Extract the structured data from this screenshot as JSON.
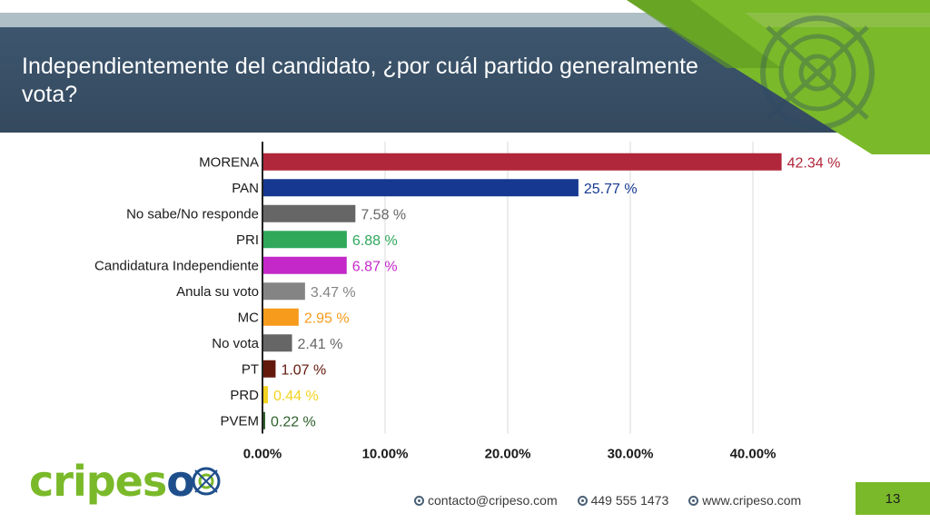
{
  "header": {
    "title": "Independientemente del candidato, ¿por cuál partido generalmente vota?"
  },
  "chart_data": {
    "type": "bar",
    "orientation": "horizontal",
    "categories": [
      "MORENA",
      "PAN",
      "No sabe/No responde",
      "PRI",
      "Candidatura Independiente",
      "Anula su voto",
      "MC",
      "No vota",
      "PT",
      "PRD",
      "PVEM"
    ],
    "values": [
      42.34,
      25.77,
      7.58,
      6.88,
      6.87,
      3.47,
      2.95,
      2.41,
      1.07,
      0.44,
      0.22
    ],
    "value_labels": [
      "42.34 %",
      "25.77 %",
      "7.58 %",
      "6.88 %",
      "6.87 %",
      "3.47 %",
      "2.95 %",
      "2.41 %",
      "1.07 %",
      "0.44 %",
      "0.22 %"
    ],
    "colors": [
      "#b0263a",
      "#163891",
      "#666666",
      "#2fa85a",
      "#c428c9",
      "#848484",
      "#f69b1b",
      "#666666",
      "#63180c",
      "#f2d21f",
      "#2d5f2b"
    ],
    "x_ticks": [
      "0.00%",
      "10.00%",
      "20.00%",
      "30.00%",
      "40.00%"
    ],
    "x_tick_values": [
      0,
      10,
      20,
      30,
      40
    ],
    "xlim": [
      0,
      45
    ],
    "grid": true,
    "legend": "none"
  },
  "logo": {
    "part1": "cripes",
    "part2": "o"
  },
  "footer": {
    "email": "contacto@cripeso.com",
    "phone": "449 555 1473",
    "web": "www.cripeso.com",
    "page_number": "13"
  },
  "colors": {
    "header": "#34495e",
    "accent_green": "#7ab929",
    "strip": "#aebfc5"
  }
}
